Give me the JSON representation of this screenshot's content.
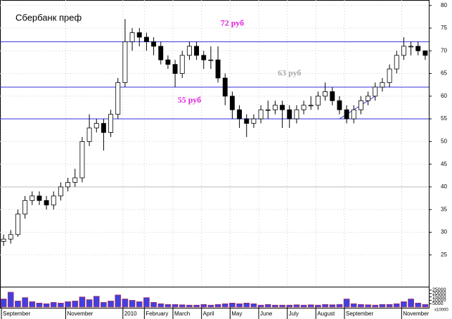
{
  "chart_data": {
    "type": "candlestick",
    "title": "Сбербанк преф",
    "annotations": [
      {
        "text": "72 руб",
        "x": 32,
        "y": 76,
        "color": "#e020e0"
      },
      {
        "text": "63 руб",
        "x": 40,
        "y": 65,
        "color": "#aaaaaa"
      },
      {
        "text": "55 руб",
        "x": 26,
        "y": 59,
        "color": "#e020e0"
      }
    ],
    "levels": [
      {
        "value": 72,
        "color": "#3030e0"
      },
      {
        "value": 62,
        "color": "#3030e0"
      },
      {
        "value": 55,
        "color": "#3030e0"
      },
      {
        "value": 40,
        "color": "#bbbbbb"
      }
    ],
    "trendline": {
      "x": [
        47,
        52
      ],
      "y": [
        55,
        60
      ],
      "color": "#3030e0"
    },
    "open": [
      28,
      28.5,
      29.5,
      34,
      37,
      38,
      37,
      36,
      38,
      40,
      41,
      42,
      50,
      53,
      54,
      52,
      56,
      63,
      72,
      74,
      73,
      72,
      71,
      68,
      67,
      65,
      69,
      71,
      69,
      68,
      68,
      64,
      60,
      57,
      55,
      54,
      55,
      57,
      57,
      58,
      57,
      55,
      57,
      58,
      58,
      60,
      61,
      59,
      57,
      55,
      57,
      59,
      60,
      62,
      63,
      66,
      69,
      71,
      71,
      70
    ],
    "high": [
      29.5,
      30.5,
      35,
      38,
      39,
      39,
      38,
      39,
      41,
      42,
      44,
      51,
      56,
      55,
      55,
      57,
      64,
      77,
      75,
      75,
      74,
      73,
      72,
      69,
      68,
      70,
      72,
      72,
      70,
      71,
      71,
      65,
      61,
      58,
      56,
      56,
      58,
      59,
      59,
      59,
      58,
      58,
      59,
      60,
      61,
      63,
      62,
      60,
      58,
      58,
      60,
      61,
      63,
      64,
      67,
      70,
      73,
      72,
      72,
      70
    ],
    "low": [
      27,
      27.5,
      29,
      33,
      36,
      36,
      35,
      35,
      37,
      39,
      40,
      41,
      49,
      52,
      48,
      51,
      55,
      62,
      70,
      71,
      70,
      69,
      67,
      66,
      62,
      64,
      68,
      68,
      66,
      66,
      63,
      58,
      55,
      53,
      51,
      53,
      54,
      55,
      56,
      53,
      53,
      54,
      56,
      57,
      57,
      59,
      58,
      56,
      54,
      54,
      56,
      58,
      59,
      61,
      62,
      65,
      68,
      69,
      69,
      68
    ],
    "close": [
      28.5,
      29.5,
      34,
      37,
      38,
      37,
      36,
      38,
      40,
      41,
      42,
      50,
      53,
      54,
      52,
      56,
      63,
      72,
      74,
      73,
      72,
      71,
      68,
      67,
      65,
      69,
      71,
      69,
      68,
      68,
      64,
      60,
      57,
      55,
      54,
      55,
      57,
      57,
      58,
      57,
      55,
      57,
      58,
      58,
      60,
      61,
      59,
      57,
      55,
      57,
      59,
      60,
      62,
      63,
      66,
      69,
      71,
      71,
      70,
      69
    ],
    "volume": [
      12000,
      22000,
      9000,
      14000,
      8000,
      6000,
      5000,
      7000,
      6000,
      8000,
      9000,
      15000,
      11000,
      16000,
      7000,
      9000,
      18000,
      12000,
      10000,
      8000,
      14000,
      7000,
      5000,
      4000,
      4000,
      3500,
      3000,
      3000,
      4000,
      3000,
      4000,
      5000,
      6000,
      5000,
      6000,
      5000,
      3000,
      4000,
      3000,
      3000,
      3000,
      3500,
      3000,
      3500,
      3000,
      4000,
      3500,
      4000,
      12000,
      5000,
      4000,
      3500,
      3000,
      4000,
      4000,
      5000,
      8000,
      12000,
      6000,
      4000
    ],
    "xticks": [
      {
        "value": 0,
        "label": "September"
      },
      {
        "value": 9,
        "label": "November"
      },
      {
        "value": 17,
        "label": "2010"
      },
      {
        "value": 20,
        "label": "February"
      },
      {
        "value": 24,
        "label": "March"
      },
      {
        "value": 28,
        "label": "April"
      },
      {
        "value": 32,
        "label": "May"
      },
      {
        "value": 36,
        "label": "June"
      },
      {
        "value": 40,
        "label": "July"
      },
      {
        "value": 44,
        "label": "August"
      },
      {
        "value": 48,
        "label": "September"
      },
      {
        "value": 56,
        "label": "November"
      }
    ],
    "ylim": [
      18,
      81.2
    ],
    "yticks": [
      25,
      30,
      35,
      40,
      45,
      50,
      55,
      60,
      65,
      70,
      75,
      80
    ],
    "vlim": [
      0,
      28000
    ],
    "vticks": [
      5000,
      10000,
      15000,
      20000,
      25000
    ],
    "volume_unit": "x10000",
    "volume_color": "#4040e0",
    "grid": true
  }
}
